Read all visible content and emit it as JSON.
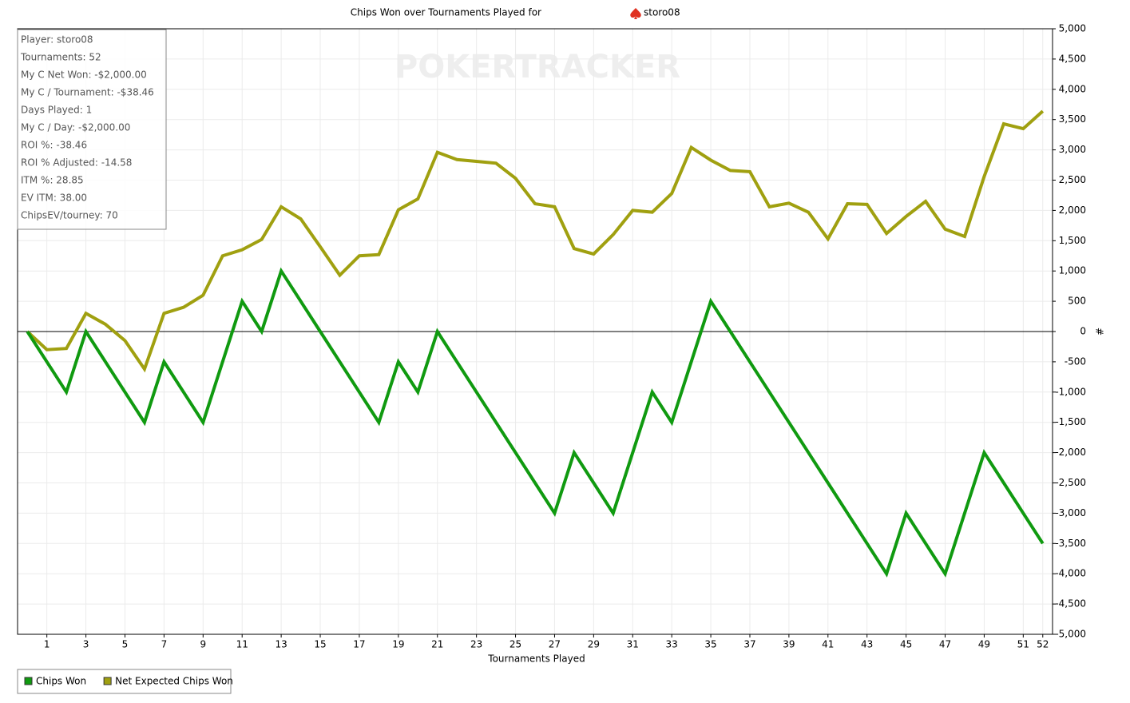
{
  "chart_data": {
    "type": "line",
    "title": "Chips Won over Tournaments Played for",
    "title_player": "storo08",
    "watermark": "POKERTRACKER",
    "x_label": "Tournaments Played",
    "y_label": "#",
    "x": [
      0,
      1,
      2,
      3,
      4,
      5,
      6,
      7,
      8,
      9,
      10,
      11,
      12,
      13,
      14,
      15,
      16,
      17,
      18,
      19,
      20,
      21,
      22,
      23,
      24,
      25,
      26,
      27,
      28,
      29,
      30,
      31,
      32,
      33,
      34,
      35,
      36,
      37,
      38,
      39,
      40,
      41,
      42,
      43,
      44,
      45,
      46,
      47,
      48,
      49,
      50,
      51,
      52
    ],
    "series": [
      {
        "name": "Chips Won",
        "color": "#109a10",
        "values": [
          0,
          -500,
          -1000,
          0,
          -500,
          -1000,
          -1500,
          -500,
          -1000,
          -1500,
          -500,
          500,
          0,
          1000,
          500,
          0,
          -500,
          -1000,
          -1500,
          -500,
          -1000,
          0,
          -500,
          -1000,
          -1500,
          -2000,
          -2500,
          -3000,
          -2000,
          -2500,
          -3000,
          -2000,
          -1000,
          -1500,
          -500,
          500,
          0,
          -500,
          -1000,
          -1500,
          -2000,
          -2500,
          -3000,
          -3500,
          -4000,
          -3000,
          -3500,
          -4000,
          -3000,
          -2000,
          -2500,
          -3000,
          -3500
        ]
      },
      {
        "name": "Net Expected Chips Won",
        "color": "#a0a010",
        "values": [
          0,
          -300,
          -280,
          300,
          120,
          -150,
          -620,
          300,
          400,
          600,
          1250,
          1350,
          1520,
          2060,
          1860,
          1400,
          930,
          1250,
          1270,
          2010,
          2190,
          2960,
          2840,
          2810,
          2780,
          2530,
          2110,
          2060,
          1370,
          1280,
          1600,
          2000,
          1970,
          2280,
          3040,
          2830,
          2660,
          2640,
          2060,
          2120,
          1970,
          1530,
          2110,
          2100,
          1620,
          1900,
          2150,
          1690,
          1570,
          2560,
          3430,
          3350,
          3640
        ]
      }
    ],
    "xlim": [
      -0.5,
      52.5
    ],
    "xticks": [
      1,
      3,
      5,
      7,
      9,
      11,
      13,
      15,
      17,
      19,
      21,
      23,
      25,
      27,
      29,
      31,
      33,
      35,
      37,
      39,
      41,
      43,
      45,
      47,
      49,
      51,
      52
    ],
    "ylim": [
      -5000,
      5000
    ],
    "yticks": [
      {
        "value": -5000,
        "label": "-5,000"
      },
      {
        "value": -4500,
        "label": "-4,500"
      },
      {
        "value": -4000,
        "label": "-4,000"
      },
      {
        "value": -3500,
        "label": "-3,500"
      },
      {
        "value": -3000,
        "label": "-3,000"
      },
      {
        "value": -2500,
        "label": "-2,500"
      },
      {
        "value": -2000,
        "label": "-2,000"
      },
      {
        "value": -1500,
        "label": "-1,500"
      },
      {
        "value": -1000,
        "label": "-1,000"
      },
      -500,
      0,
      500,
      {
        "value": 1000,
        "label": "1,000"
      },
      {
        "value": 1500,
        "label": "1,500"
      },
      {
        "value": 2000,
        "label": "2,000"
      },
      {
        "value": 2500,
        "label": "2,500"
      },
      {
        "value": 3000,
        "label": "3,000"
      },
      {
        "value": 3500,
        "label": "3,500"
      },
      {
        "value": 4000,
        "label": "4,000"
      },
      {
        "value": 4500,
        "label": "4,500"
      },
      {
        "value": 5000,
        "label": "5,000"
      }
    ],
    "grid": true,
    "stats": [
      "Player: storo08",
      "Tournaments: 52",
      "My C Net Won: -$2,000.00",
      "My C / Tournament: -$38.46",
      "Days Played: 1",
      "My C / Day: -$2,000.00",
      "ROI %: -38.46",
      "ROI % Adjusted: -14.58",
      "ITM %: 28.85",
      "EV ITM: 38.00",
      "ChipsEV/tourney: 70"
    ]
  }
}
